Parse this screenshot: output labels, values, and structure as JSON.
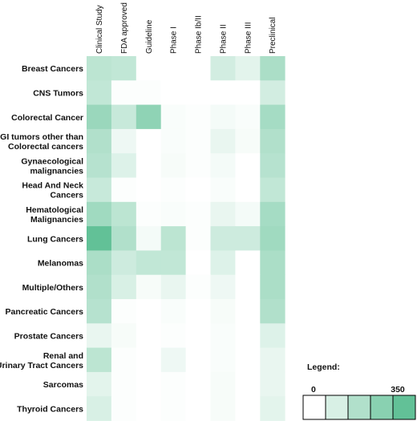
{
  "chart_data": {
    "type": "heatmap",
    "columns": [
      "Clinical Study",
      "FDA approved",
      "Guideline",
      "Phase I",
      "Phase Ib/II",
      "Phase II",
      "Phase III",
      "Preclinical"
    ],
    "rows": [
      {
        "label": [
          "Breast Cancers"
        ],
        "values": [
          120,
          110,
          0,
          0,
          0,
          80,
          50,
          150
        ]
      },
      {
        "label": [
          "CNS Tumors"
        ],
        "values": [
          110,
          5,
          5,
          0,
          0,
          0,
          0,
          80
        ]
      },
      {
        "label": [
          "Colorectal Cancer"
        ],
        "values": [
          180,
          100,
          200,
          10,
          5,
          20,
          10,
          160
        ]
      },
      {
        "label": [
          "GI tumors other than",
          "Colorectal cancers"
        ],
        "values": [
          140,
          30,
          0,
          10,
          5,
          40,
          15,
          140
        ]
      },
      {
        "label": [
          "Gynaecological",
          "malignancies"
        ],
        "values": [
          130,
          60,
          0,
          15,
          5,
          20,
          0,
          130
        ]
      },
      {
        "label": [
          "Head And Neck",
          "Cancers"
        ],
        "values": [
          100,
          5,
          0,
          5,
          0,
          10,
          0,
          110
        ]
      },
      {
        "label": [
          "Hematological",
          "Malignancies"
        ],
        "values": [
          170,
          120,
          5,
          10,
          5,
          40,
          20,
          160
        ]
      },
      {
        "label": [
          "Lung Cancers"
        ],
        "values": [
          280,
          140,
          20,
          120,
          5,
          90,
          90,
          170
        ]
      },
      {
        "label": [
          "Melanomas"
        ],
        "values": [
          150,
          90,
          110,
          110,
          0,
          60,
          0,
          150
        ]
      },
      {
        "label": [
          "Multiple/Others"
        ],
        "values": [
          140,
          70,
          15,
          40,
          5,
          30,
          0,
          150
        ]
      },
      {
        "label": [
          "Pancreatic Cancers"
        ],
        "values": [
          130,
          5,
          0,
          10,
          0,
          15,
          0,
          140
        ]
      },
      {
        "label": [
          "Prostate Cancers"
        ],
        "values": [
          40,
          15,
          0,
          5,
          0,
          10,
          0,
          60
        ]
      },
      {
        "label": [
          "Renal and",
          "Urinary Tract Cancers"
        ],
        "values": [
          120,
          5,
          0,
          30,
          0,
          10,
          0,
          40
        ]
      },
      {
        "label": [
          "Sarcomas"
        ],
        "values": [
          50,
          5,
          0,
          5,
          0,
          15,
          0,
          40
        ]
      },
      {
        "label": [
          "Thyroid Cancers"
        ],
        "values": [
          70,
          5,
          0,
          5,
          0,
          15,
          0,
          50
        ]
      }
    ],
    "value_range": [
      0,
      350
    ],
    "color_low": "#ffffff",
    "color_high": "#3bb27d",
    "legend": {
      "title": "Legend:",
      "min_label": "0",
      "max_label": "350",
      "steps": [
        0,
        70,
        140,
        210,
        280
      ]
    }
  }
}
